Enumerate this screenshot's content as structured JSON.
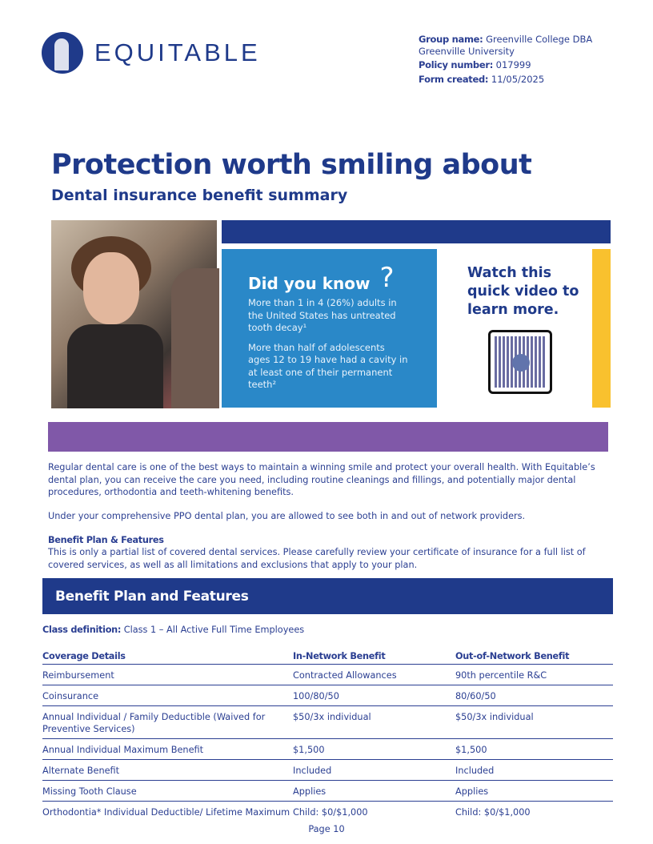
{
  "header": {
    "brand": "EQUITABLE",
    "group_label": "Group name:",
    "group_value": "Greenville College DBA",
    "group_value2": "Greenville University",
    "policy_label": "Policy number:",
    "policy_value": "017999",
    "form_label": "Form created:",
    "form_value": "11/05/2025"
  },
  "title": "Protection worth smiling about",
  "subtitle": "Dental insurance benefit summary",
  "did_you_know": {
    "heading": "Did you know",
    "icon": "question-mark-icon",
    "fact1": "More than 1 in 4 (26%) adults in the United States has untreated tooth decay¹",
    "fact2": "More than half of adolescents ages 12 to 19 have had a cavity in at least one of their permanent teeth²"
  },
  "video": {
    "text": "Watch this quick video to learn more.",
    "icon": "qr-code-icon"
  },
  "colors": {
    "navy": "#1f3a8a",
    "blue": "#2a88c8",
    "yellow": "#f9c12e",
    "purple": "#8058a8"
  },
  "intro": {
    "p1": "Regular dental care is one of the best ways to maintain a winning smile and protect your overall health. With Equitable’s dental plan, you can receive the care you need, including routine cleanings and fillings, and potentially major dental procedures, orthodontia and teeth-whitening benefits.",
    "p2": "Under your comprehensive PPO dental plan, you are allowed to see both in and out of network providers.",
    "heading": "Benefit Plan & Features",
    "p3": "This is only a partial list of covered dental services. Please carefully review your certificate of insurance for a full list of covered services, as well as all limitations and exclusions that apply to your plan."
  },
  "section": {
    "title": "Benefit Plan and Features",
    "class_label": "Class definition:",
    "class_value": "Class 1 – All Active Full Time Employees"
  },
  "table": {
    "headers": [
      "Coverage Details",
      "In-Network Benefit",
      "Out-of-Network Benefit"
    ],
    "rows": [
      [
        "Reimbursement",
        "Contracted Allowances",
        "90th percentile R&C"
      ],
      [
        "Coinsurance",
        "100/80/50",
        "80/60/50"
      ],
      [
        "Annual Individual / Family Deductible (Waived for Preventive Services)",
        "$50/3x individual",
        "$50/3x individual"
      ],
      [
        "Annual Individual Maximum Benefit",
        "$1,500",
        "$1,500"
      ],
      [
        "Alternate Benefit",
        "Included",
        "Included"
      ],
      [
        "Missing Tooth Clause",
        "Applies",
        "Applies"
      ],
      [
        "Orthodontia* Individual Deductible/ Lifetime Maximum",
        "Child: $0/$1,000",
        "Child: $0/$1,000"
      ]
    ]
  },
  "footer": {
    "page": "Page 10"
  }
}
